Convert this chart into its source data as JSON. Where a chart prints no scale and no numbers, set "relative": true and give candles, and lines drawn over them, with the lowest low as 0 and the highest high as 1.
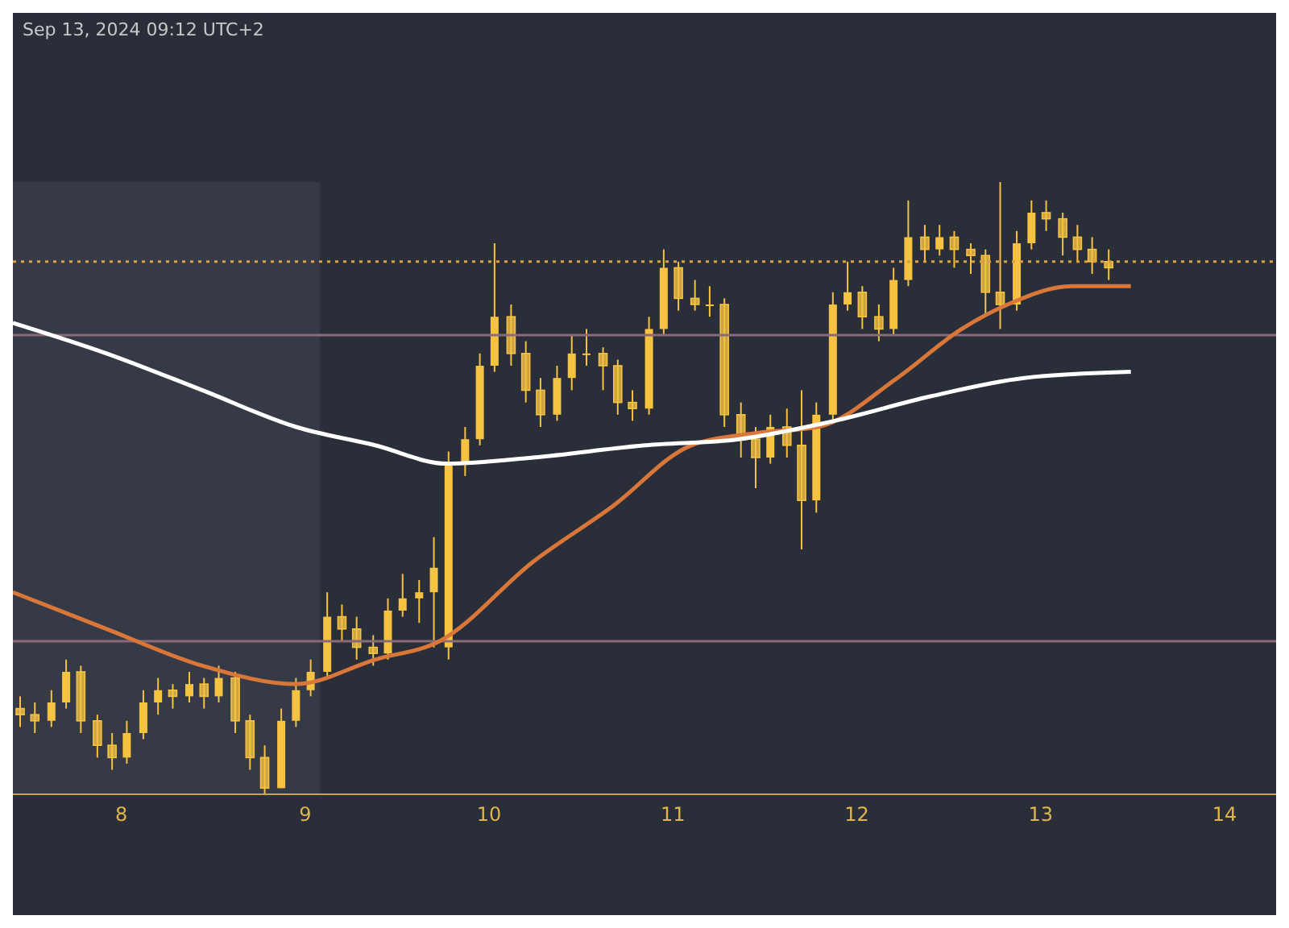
{
  "chart_data": {
    "type": "candlestick",
    "relative": true,
    "tick_labels": "x",
    "annotations": [
      "Sep 13, 2024 09:12 UTC+2"
    ],
    "xlim": [
      7.41,
      14.28
    ],
    "xticks": [
      8,
      9,
      10,
      11,
      12,
      13,
      14
    ],
    "color": "#f5c242",
    "x": [
      7.45,
      7.53,
      7.62,
      7.7,
      7.78,
      7.87,
      7.95,
      8.03,
      8.12,
      8.2,
      8.28,
      8.37,
      8.45,
      8.53,
      8.62,
      8.7,
      8.78,
      8.87,
      8.95,
      9.03,
      9.12,
      9.2,
      9.28,
      9.37,
      9.45,
      9.53,
      9.62,
      9.7,
      9.78,
      9.87,
      9.95,
      10.03,
      10.12,
      10.2,
      10.28,
      10.37,
      10.45,
      10.53,
      10.62,
      10.7,
      10.78,
      10.87,
      10.95,
      11.03,
      11.12,
      11.2,
      11.28,
      11.37,
      11.45,
      11.53,
      11.62,
      11.7,
      11.78,
      11.87,
      11.95,
      12.03,
      12.12,
      12.2,
      12.28,
      12.37,
      12.45,
      12.53,
      12.62,
      12.7,
      12.78,
      12.87,
      12.95,
      13.03,
      13.12,
      13.2,
      13.28,
      13.37
    ],
    "ohlc": [
      [
        0.14,
        0.16,
        0.11,
        0.13
      ],
      [
        0.13,
        0.15,
        0.1,
        0.12
      ],
      [
        0.12,
        0.17,
        0.11,
        0.15
      ],
      [
        0.15,
        0.22,
        0.14,
        0.2
      ],
      [
        0.2,
        0.21,
        0.1,
        0.12
      ],
      [
        0.12,
        0.13,
        0.06,
        0.08
      ],
      [
        0.08,
        0.1,
        0.04,
        0.06
      ],
      [
        0.06,
        0.12,
        0.05,
        0.1
      ],
      [
        0.1,
        0.17,
        0.09,
        0.15
      ],
      [
        0.15,
        0.19,
        0.13,
        0.17
      ],
      [
        0.17,
        0.18,
        0.14,
        0.16
      ],
      [
        0.16,
        0.2,
        0.15,
        0.18
      ],
      [
        0.18,
        0.19,
        0.14,
        0.16
      ],
      [
        0.16,
        0.21,
        0.15,
        0.19
      ],
      [
        0.19,
        0.2,
        0.1,
        0.12
      ],
      [
        0.12,
        0.13,
        0.04,
        0.06
      ],
      [
        0.06,
        0.08,
        0.0,
        0.01
      ],
      [
        0.01,
        0.14,
        0.01,
        0.12
      ],
      [
        0.12,
        0.19,
        0.11,
        0.17
      ],
      [
        0.17,
        0.22,
        0.16,
        0.2
      ],
      [
        0.2,
        0.33,
        0.19,
        0.29
      ],
      [
        0.29,
        0.31,
        0.25,
        0.27
      ],
      [
        0.27,
        0.29,
        0.22,
        0.24
      ],
      [
        0.24,
        0.26,
        0.21,
        0.23
      ],
      [
        0.23,
        0.32,
        0.22,
        0.3
      ],
      [
        0.3,
        0.36,
        0.29,
        0.32
      ],
      [
        0.32,
        0.35,
        0.28,
        0.33
      ],
      [
        0.33,
        0.42,
        0.24,
        0.37
      ],
      [
        0.24,
        0.56,
        0.22,
        0.54
      ],
      [
        0.54,
        0.6,
        0.52,
        0.58
      ],
      [
        0.58,
        0.72,
        0.57,
        0.7
      ],
      [
        0.7,
        0.9,
        0.69,
        0.78
      ],
      [
        0.78,
        0.8,
        0.7,
        0.72
      ],
      [
        0.72,
        0.74,
        0.64,
        0.66
      ],
      [
        0.66,
        0.68,
        0.6,
        0.62
      ],
      [
        0.62,
        0.7,
        0.61,
        0.68
      ],
      [
        0.68,
        0.75,
        0.66,
        0.72
      ],
      [
        0.72,
        0.76,
        0.7,
        0.72
      ],
      [
        0.72,
        0.73,
        0.66,
        0.7
      ],
      [
        0.7,
        0.71,
        0.62,
        0.64
      ],
      [
        0.64,
        0.66,
        0.61,
        0.63
      ],
      [
        0.63,
        0.78,
        0.62,
        0.76
      ],
      [
        0.76,
        0.89,
        0.75,
        0.86
      ],
      [
        0.86,
        0.87,
        0.79,
        0.81
      ],
      [
        0.81,
        0.84,
        0.79,
        0.8
      ],
      [
        0.8,
        0.83,
        0.78,
        0.8
      ],
      [
        0.8,
        0.81,
        0.6,
        0.62
      ],
      [
        0.62,
        0.64,
        0.55,
        0.58
      ],
      [
        0.58,
        0.6,
        0.5,
        0.55
      ],
      [
        0.55,
        0.62,
        0.54,
        0.6
      ],
      [
        0.6,
        0.63,
        0.55,
        0.57
      ],
      [
        0.57,
        0.66,
        0.4,
        0.48
      ],
      [
        0.48,
        0.64,
        0.46,
        0.62
      ],
      [
        0.62,
        0.82,
        0.61,
        0.8
      ],
      [
        0.8,
        0.87,
        0.79,
        0.82
      ],
      [
        0.82,
        0.83,
        0.76,
        0.78
      ],
      [
        0.78,
        0.8,
        0.74,
        0.76
      ],
      [
        0.76,
        0.86,
        0.75,
        0.84
      ],
      [
        0.84,
        0.97,
        0.83,
        0.91
      ],
      [
        0.91,
        0.93,
        0.87,
        0.89
      ],
      [
        0.89,
        0.93,
        0.88,
        0.91
      ],
      [
        0.91,
        0.92,
        0.86,
        0.89
      ],
      [
        0.89,
        0.9,
        0.85,
        0.88
      ],
      [
        0.88,
        0.89,
        0.78,
        0.82
      ],
      [
        0.82,
        1.0,
        0.76,
        0.8
      ],
      [
        0.8,
        0.92,
        0.79,
        0.9
      ],
      [
        0.9,
        0.97,
        0.89,
        0.95
      ],
      [
        0.95,
        0.97,
        0.92,
        0.94
      ],
      [
        0.94,
        0.95,
        0.88,
        0.91
      ],
      [
        0.91,
        0.93,
        0.87,
        0.89
      ],
      [
        0.89,
        0.91,
        0.85,
        0.87
      ],
      [
        0.87,
        0.89,
        0.84,
        0.86
      ]
    ],
    "series": [
      {
        "type": "line",
        "color": "#d9773a",
        "x": [
          7.41,
          7.92,
          8.44,
          8.95,
          9.38,
          9.73,
          10.24,
          10.67,
          11.1,
          11.45,
          11.79,
          12.22,
          12.57,
          12.82,
          13.17,
          13.49
        ],
        "values": [
          0.33,
          0.27,
          0.21,
          0.18,
          0.22,
          0.25,
          0.38,
          0.47,
          0.57,
          0.59,
          0.6,
          0.68,
          0.76,
          0.8,
          0.83,
          0.83
        ]
      },
      {
        "type": "line",
        "color": "#ffffff",
        "x": [
          7.41,
          7.92,
          8.44,
          8.95,
          9.38,
          9.77,
          10.24,
          10.85,
          11.36,
          11.88,
          12.4,
          12.91,
          13.49
        ],
        "values": [
          0.77,
          0.72,
          0.66,
          0.6,
          0.57,
          0.54,
          0.55,
          0.57,
          0.58,
          0.61,
          0.65,
          0.68,
          0.69
        ]
      }
    ],
    "ref_lines": [
      {
        "axis": "y",
        "value": 0.75,
        "color": "#8a6a78"
      },
      {
        "axis": "y",
        "value": 0.25,
        "color": "#8a6a78"
      },
      {
        "axis": "y",
        "value": 0.87,
        "color": "#d9a046",
        "line_style": "dotted"
      }
    ],
    "bands": [
      {
        "axis": "x",
        "from": 7.41,
        "to": 9.08,
        "color": "#363a46"
      }
    ]
  }
}
